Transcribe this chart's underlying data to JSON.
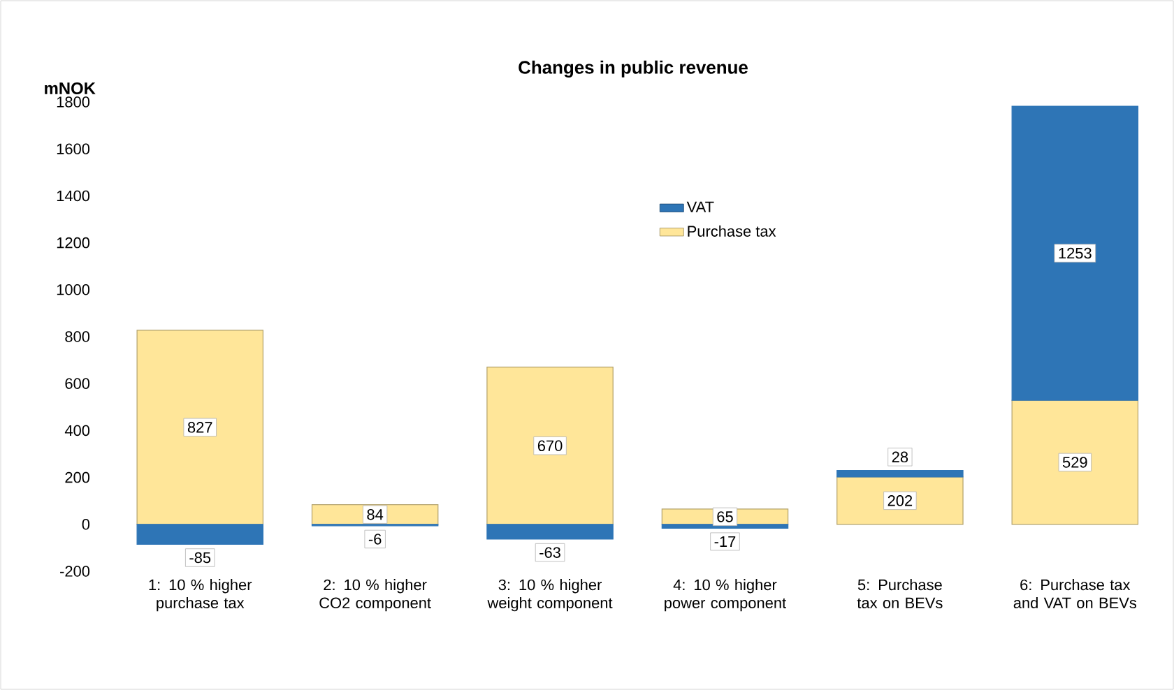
{
  "chart_data": {
    "type": "bar",
    "stacked": true,
    "title": "Changes in public revenue",
    "ylabel": "mNOK",
    "categories": [
      "1: 10 % higher purchase tax",
      "2: 10 % higher CO2 component",
      "3: 10 % higher weight component",
      "4: 10 % higher power component",
      "5: Purchase tax on BEVs",
      "6: Purchase tax and VAT on BEVs"
    ],
    "series": [
      {
        "name": "Purchase tax",
        "color": "#ffe699",
        "values": [
          827,
          84,
          670,
          65,
          202,
          529
        ]
      },
      {
        "name": "VAT",
        "color": "#2e75b6",
        "values": [
          -85,
          -6,
          -63,
          -17,
          28,
          1253
        ]
      }
    ],
    "ylim": [
      -200,
      1800
    ],
    "yticks": [
      -200,
      0,
      200,
      400,
      600,
      800,
      1000,
      1200,
      1400,
      1600,
      1800
    ],
    "data_labels": true,
    "legend": "top"
  }
}
